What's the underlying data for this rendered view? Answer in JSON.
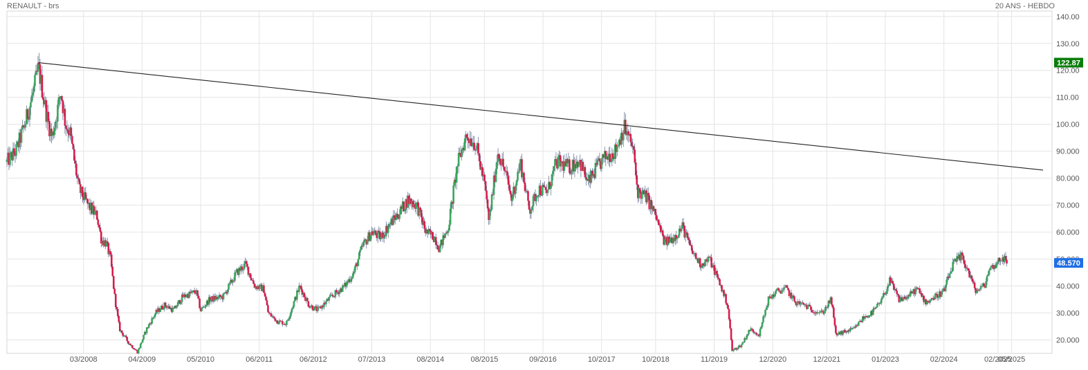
{
  "header": {
    "title": "RENAULT - brs",
    "period": "20 ANS - HEBDO"
  },
  "chart_data": {
    "type": "candlestick",
    "title": "RENAULT - brs",
    "timeframe": "20 ANS - HEBDO",
    "y_axis": {
      "side": "right",
      "ylim": [
        15,
        142
      ],
      "ticks": [
        "20.000",
        "30.000",
        "40.000",
        "50.000",
        "60.000",
        "70.000",
        "80.000",
        "90.000",
        "100.00",
        "110.00",
        "120.00",
        "130.00",
        "140.00"
      ]
    },
    "x_axis": {
      "xlim": [
        "2006-10",
        "2026-02"
      ],
      "tick_labels": [
        "03/2008",
        "04/2009",
        "05/2010",
        "06/2011",
        "06/2012",
        "07/2013",
        "08/2014",
        "08/2015",
        "09/2016",
        "10/2017",
        "10/2018",
        "11/2019",
        "12/2020",
        "12/2021",
        "01/2023",
        "02/2024",
        "02/2025",
        "05/2025"
      ]
    },
    "price_path": [
      {
        "d": "2006-10",
        "p": 86
      },
      {
        "d": "2006-12",
        "p": 90
      },
      {
        "d": "2007-02",
        "p": 100
      },
      {
        "d": "2007-04",
        "p": 113
      },
      {
        "d": "2007-05",
        "p": 121
      },
      {
        "d": "2007-07",
        "p": 102
      },
      {
        "d": "2007-08",
        "p": 95
      },
      {
        "d": "2007-10",
        "p": 112
      },
      {
        "d": "2007-11",
        "p": 100
      },
      {
        "d": "2007-12",
        "p": 97
      },
      {
        "d": "2008-01",
        "p": 86
      },
      {
        "d": "2008-02",
        "p": 76
      },
      {
        "d": "2008-04",
        "p": 70
      },
      {
        "d": "2008-06",
        "p": 66
      },
      {
        "d": "2008-07",
        "p": 57
      },
      {
        "d": "2008-08",
        "p": 56
      },
      {
        "d": "2008-09",
        "p": 50
      },
      {
        "d": "2008-10",
        "p": 35
      },
      {
        "d": "2008-11",
        "p": 24
      },
      {
        "d": "2009-01",
        "p": 19
      },
      {
        "d": "2009-03",
        "p": 15.5
      },
      {
        "d": "2009-05",
        "p": 24
      },
      {
        "d": "2009-07",
        "p": 30
      },
      {
        "d": "2009-09",
        "p": 33
      },
      {
        "d": "2009-11",
        "p": 31
      },
      {
        "d": "2010-01",
        "p": 36
      },
      {
        "d": "2010-04",
        "p": 38
      },
      {
        "d": "2010-05",
        "p": 31
      },
      {
        "d": "2010-07",
        "p": 35
      },
      {
        "d": "2010-10",
        "p": 36
      },
      {
        "d": "2011-01",
        "p": 45
      },
      {
        "d": "2011-03",
        "p": 48
      },
      {
        "d": "2011-05",
        "p": 40
      },
      {
        "d": "2011-07",
        "p": 39
      },
      {
        "d": "2011-08",
        "p": 30
      },
      {
        "d": "2011-10",
        "p": 27
      },
      {
        "d": "2011-12",
        "p": 26
      },
      {
        "d": "2012-03",
        "p": 40
      },
      {
        "d": "2012-05",
        "p": 33
      },
      {
        "d": "2012-07",
        "p": 31
      },
      {
        "d": "2012-10",
        "p": 36
      },
      {
        "d": "2013-01",
        "p": 40
      },
      {
        "d": "2013-03",
        "p": 45
      },
      {
        "d": "2013-05",
        "p": 55
      },
      {
        "d": "2013-07",
        "p": 60
      },
      {
        "d": "2013-09",
        "p": 58
      },
      {
        "d": "2013-11",
        "p": 63
      },
      {
        "d": "2014-01",
        "p": 67
      },
      {
        "d": "2014-03",
        "p": 72
      },
      {
        "d": "2014-05",
        "p": 70
      },
      {
        "d": "2014-07",
        "p": 60
      },
      {
        "d": "2014-09",
        "p": 58
      },
      {
        "d": "2014-10",
        "p": 54
      },
      {
        "d": "2014-12",
        "p": 62
      },
      {
        "d": "2015-02",
        "p": 85
      },
      {
        "d": "2015-04",
        "p": 96
      },
      {
        "d": "2015-06",
        "p": 93
      },
      {
        "d": "2015-08",
        "p": 78
      },
      {
        "d": "2015-09",
        "p": 64
      },
      {
        "d": "2015-11",
        "p": 90
      },
      {
        "d": "2016-01",
        "p": 80
      },
      {
        "d": "2016-02",
        "p": 72
      },
      {
        "d": "2016-04",
        "p": 86
      },
      {
        "d": "2016-06",
        "p": 68
      },
      {
        "d": "2016-08",
        "p": 76
      },
      {
        "d": "2016-10",
        "p": 75
      },
      {
        "d": "2016-12",
        "p": 86
      },
      {
        "d": "2017-03",
        "p": 84
      },
      {
        "d": "2017-05",
        "p": 87
      },
      {
        "d": "2017-07",
        "p": 78
      },
      {
        "d": "2017-09",
        "p": 84
      },
      {
        "d": "2017-11",
        "p": 88
      },
      {
        "d": "2018-01",
        "p": 90
      },
      {
        "d": "2018-03",
        "p": 99
      },
      {
        "d": "2018-05",
        "p": 91
      },
      {
        "d": "2018-06",
        "p": 75
      },
      {
        "d": "2018-08",
        "p": 73
      },
      {
        "d": "2018-10",
        "p": 66
      },
      {
        "d": "2018-12",
        "p": 56
      },
      {
        "d": "2019-02",
        "p": 58
      },
      {
        "d": "2019-04",
        "p": 62
      },
      {
        "d": "2019-06",
        "p": 53
      },
      {
        "d": "2019-08",
        "p": 48
      },
      {
        "d": "2019-10",
        "p": 50
      },
      {
        "d": "2019-12",
        "p": 42
      },
      {
        "d": "2020-02",
        "p": 33
      },
      {
        "d": "2020-03",
        "p": 16
      },
      {
        "d": "2020-05",
        "p": 18
      },
      {
        "d": "2020-07",
        "p": 24
      },
      {
        "d": "2020-09",
        "p": 22
      },
      {
        "d": "2020-11",
        "p": 35
      },
      {
        "d": "2021-01",
        "p": 38
      },
      {
        "d": "2021-03",
        "p": 39
      },
      {
        "d": "2021-05",
        "p": 34
      },
      {
        "d": "2021-07",
        "p": 33
      },
      {
        "d": "2021-09",
        "p": 31
      },
      {
        "d": "2021-11",
        "p": 30
      },
      {
        "d": "2022-01",
        "p": 35
      },
      {
        "d": "2022-02",
        "p": 22
      },
      {
        "d": "2022-04",
        "p": 23
      },
      {
        "d": "2022-06",
        "p": 24
      },
      {
        "d": "2022-08",
        "p": 28
      },
      {
        "d": "2022-10",
        "p": 30
      },
      {
        "d": "2022-12",
        "p": 34
      },
      {
        "d": "2023-02",
        "p": 42
      },
      {
        "d": "2023-04",
        "p": 35
      },
      {
        "d": "2023-06",
        "p": 36
      },
      {
        "d": "2023-08",
        "p": 39
      },
      {
        "d": "2023-10",
        "p": 34
      },
      {
        "d": "2023-12",
        "p": 36
      },
      {
        "d": "2024-02",
        "p": 38
      },
      {
        "d": "2024-04",
        "p": 48
      },
      {
        "d": "2024-06",
        "p": 51
      },
      {
        "d": "2024-08",
        "p": 43
      },
      {
        "d": "2024-09",
        "p": 38
      },
      {
        "d": "2024-11",
        "p": 40
      },
      {
        "d": "2024-12",
        "p": 46
      },
      {
        "d": "2025-02",
        "p": 49
      },
      {
        "d": "2025-03",
        "p": 51
      },
      {
        "d": "2025-04",
        "p": 48.57
      }
    ],
    "trendline": {
      "start": {
        "d": "2007-05",
        "p": 122.87
      },
      "end": {
        "d": "2025-12",
        "p": 83
      }
    },
    "markers": [
      {
        "label": "122.87",
        "value": 122.87,
        "color": "#0a7d0a"
      },
      {
        "label": "48.570",
        "value": 48.57,
        "color": "#1f6fe5"
      }
    ],
    "colors": {
      "up": "#3aa55c",
      "down": "#d81d4b",
      "grid": "#e4e4e4",
      "axis_text": "#555555",
      "trendline": "#222222"
    },
    "grid": true,
    "legend": "none"
  }
}
